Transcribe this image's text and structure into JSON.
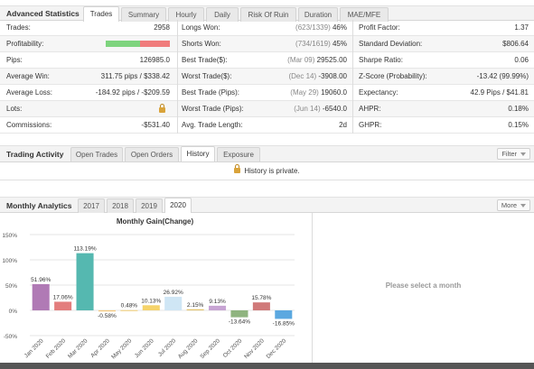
{
  "advanced": {
    "title": "Advanced Statistics",
    "tabs": [
      "Trades",
      "Summary",
      "Hourly",
      "Daily",
      "Risk Of Ruin",
      "Duration",
      "MAE/MFE"
    ],
    "active_tab": "Trades",
    "col1": [
      {
        "label": "Trades:",
        "value": "2958"
      },
      {
        "label": "Profitability:",
        "value": ""
      },
      {
        "label": "Pips:",
        "value": "126985.0"
      },
      {
        "label": "Average Win:",
        "value": "311.75 pips / $338.42"
      },
      {
        "label": "Average Loss:",
        "value": "-184.92 pips / -$209.59"
      },
      {
        "label": "Lots:",
        "value": ""
      },
      {
        "label": "Commissions:",
        "value": "-$531.40"
      }
    ],
    "profitability": {
      "win_fraction": 0.53,
      "win_color": "#7ed47e",
      "loss_color": "#f07c7c"
    },
    "col2": [
      {
        "label": "Longs Won:",
        "muted": "(623/1339)",
        "value": "46%"
      },
      {
        "label": "Shorts Won:",
        "muted": "(734/1619)",
        "value": "45%"
      },
      {
        "label": "Best Trade($):",
        "muted": "(Mar 09)",
        "value": "29525.00"
      },
      {
        "label": "Worst Trade($):",
        "muted": "(Dec 14)",
        "value": "-3908.00"
      },
      {
        "label": "Best Trade (Pips):",
        "muted": "(May 29)",
        "value": "19060.0"
      },
      {
        "label": "Worst Trade (Pips):",
        "muted": "(Jun 14)",
        "value": "-6540.0"
      },
      {
        "label": "Avg. Trade Length:",
        "muted": "",
        "value": "2d"
      }
    ],
    "col3": [
      {
        "label": "Profit Factor:",
        "value": "1.37"
      },
      {
        "label": "Standard Deviation:",
        "value": "$806.64"
      },
      {
        "label": "Sharpe Ratio:",
        "value": "0.06"
      },
      {
        "label": "Z-Score (Probability):",
        "value": "-13.42 (99.99%)"
      },
      {
        "label": "Expectancy:",
        "value": "42.9 Pips / $41.81"
      },
      {
        "label": "AHPR:",
        "value": "0.18%"
      },
      {
        "label": "GHPR:",
        "value": "0.15%"
      }
    ]
  },
  "activity": {
    "title": "Trading Activity",
    "tabs": [
      "Open Trades",
      "Open Orders",
      "History",
      "Exposure"
    ],
    "active_tab": "History",
    "filter_label": "Filter",
    "private_text": "History is private."
  },
  "monthly": {
    "title": "Monthly Analytics",
    "tabs": [
      "2017",
      "2018",
      "2019",
      "2020"
    ],
    "active_tab": "2020",
    "more_label": "More",
    "select_text": "Please select a month"
  },
  "chart_data": {
    "type": "bar",
    "title": "Monthly Gain(Change)",
    "categories": [
      "Jan 2020",
      "Feb 2020",
      "Mar 2020",
      "Apr 2020",
      "May 2020",
      "Jun 2020",
      "Jul 2020",
      "Aug 2020",
      "Sep 2020",
      "Oct 2020",
      "Nov 2020",
      "Dec 2020"
    ],
    "values": [
      51.96,
      17.06,
      113.19,
      -0.58,
      0.48,
      10.13,
      26.92,
      2.15,
      9.13,
      -13.64,
      15.78,
      -16.85
    ],
    "labels": [
      "51.96%",
      "17.06%",
      "113.19%",
      "-0.58%",
      "0.48%",
      "10.13%",
      "26.92%",
      "2.15%",
      "9.13%",
      "-13.64%",
      "15.78%",
      "-16.85%"
    ],
    "colors": [
      "#b07ab5",
      "#e37d7d",
      "#55b8b0",
      "#f4c77a",
      "#f0d48a",
      "#f5d36a",
      "#cfe6f5",
      "#e3c46a",
      "#c7a4d3",
      "#8fb47f",
      "#d07a7a",
      "#5ba8e0"
    ],
    "yticks": [
      "150%",
      "100%",
      "50%",
      "0%",
      "-50%"
    ],
    "ylim": [
      -50,
      150
    ],
    "grid": true
  }
}
